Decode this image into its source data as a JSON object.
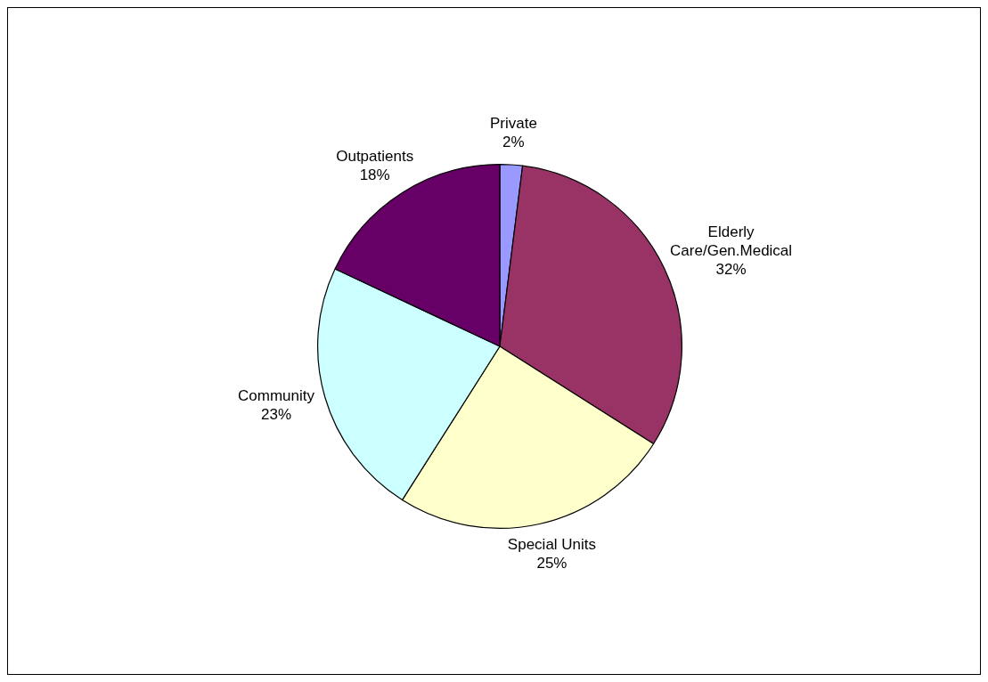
{
  "chart_data": {
    "type": "pie",
    "categories": [
      "Private",
      "Elderly Care/Gen.Medical",
      "Special Units",
      "Community",
      "Outpatients"
    ],
    "values": [
      2,
      32,
      25,
      23,
      18
    ],
    "colors": [
      "#9999ff",
      "#993366",
      "#ffffcc",
      "#ccffff",
      "#660066"
    ],
    "value_labels": [
      "2%",
      "32%",
      "25%",
      "23%",
      "18%"
    ],
    "legend": false
  }
}
